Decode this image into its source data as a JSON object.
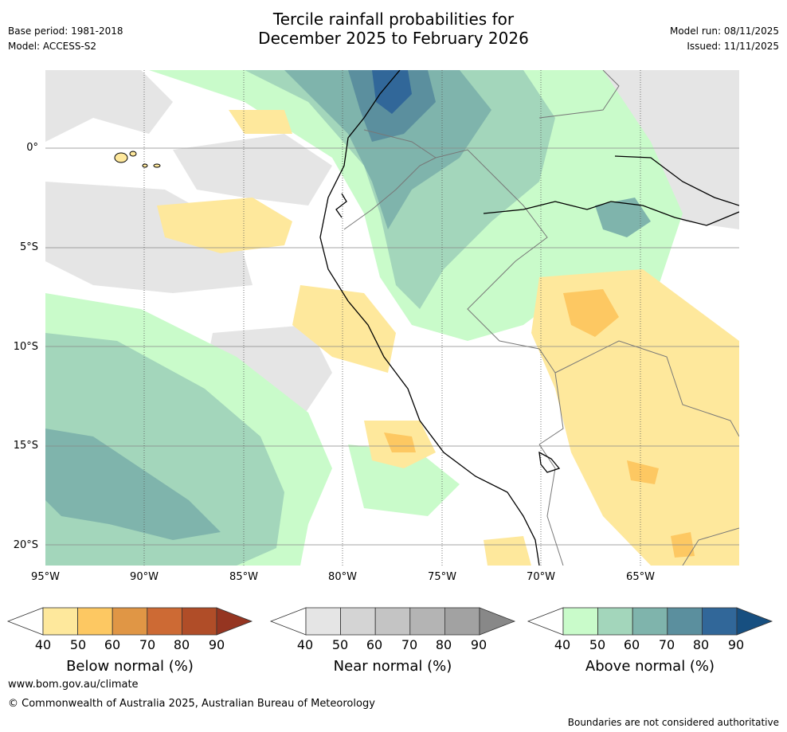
{
  "title": {
    "line1": "Tercile rainfall probabilities for",
    "line2": "December 2025 to February 2026"
  },
  "meta": {
    "base_period": "Base period: 1981-2018",
    "model": "Model: ACCESS-S2",
    "model_run": "Model run: 08/11/2025",
    "issued": "Issued: 11/11/2025"
  },
  "map": {
    "lat_labels": [
      "0°",
      "5°S",
      "10°S",
      "15°S",
      "20°S"
    ],
    "lon_labels": [
      "95°W",
      "90°W",
      "85°W",
      "80°W",
      "75°W",
      "70°W",
      "65°W"
    ]
  },
  "colorbars": {
    "ticks": [
      "40",
      "50",
      "60",
      "70",
      "80",
      "90"
    ],
    "below": {
      "label": "Below normal (%)",
      "colors": [
        "#ffffff",
        "#fee89c",
        "#fdc862",
        "#e09645",
        "#cd6a34",
        "#b04d28",
        "#953521"
      ]
    },
    "near": {
      "label": "Near normal (%)",
      "colors": [
        "#ffffff",
        "#e5e5e5",
        "#d4d4d4",
        "#c4c4c4",
        "#b4b4b4",
        "#a2a2a2",
        "#888888"
      ]
    },
    "above": {
      "label": "Above normal (%)",
      "colors": [
        "#ffffff",
        "#c9fbca",
        "#a3d6bb",
        "#7fb4ac",
        "#5b8f9e",
        "#316799",
        "#174f80"
      ]
    }
  },
  "footer": {
    "url": "www.bom.gov.au/climate",
    "copyright": "© Commonwealth of Australia 2025, Australian Bureau of Meteorology",
    "disclaimer": "Boundaries are not considered authoritative"
  }
}
